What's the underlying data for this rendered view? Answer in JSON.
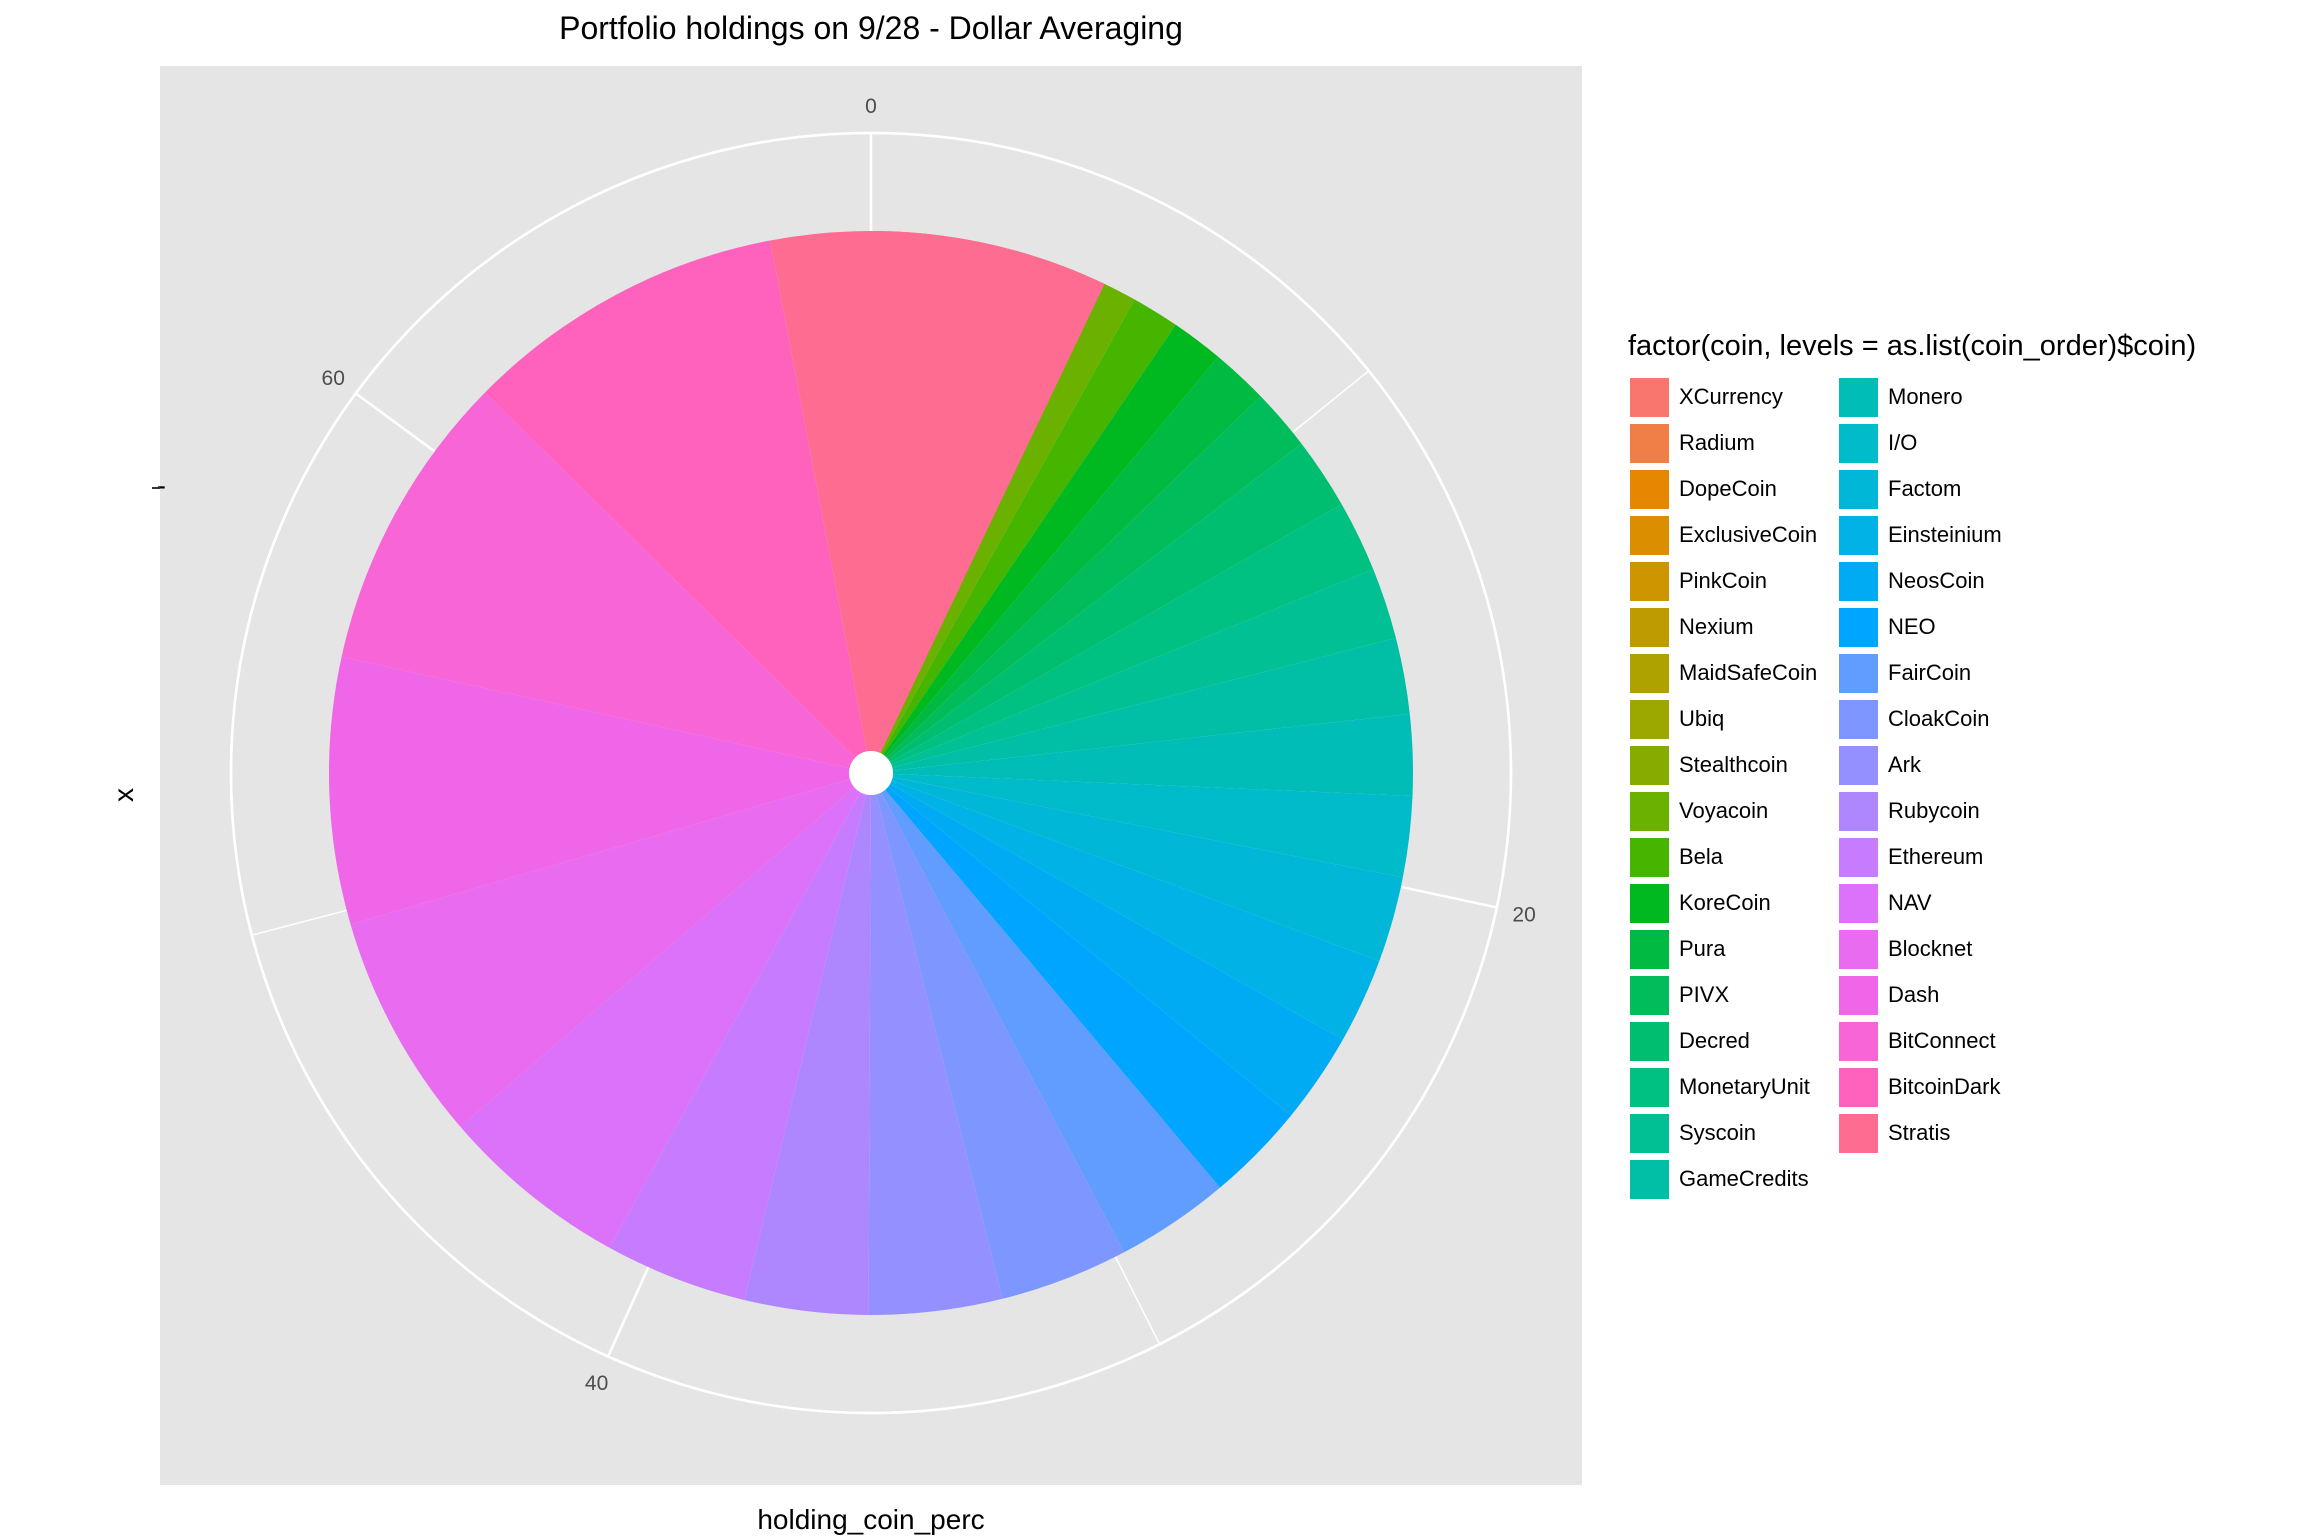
{
  "chart_data": {
    "type": "pie",
    "title": "Portfolio holdings on 9/28 - Dollar Averaging",
    "xlabel": "holding_coin_perc",
    "ylabel": "x",
    "y_tick_label": "-",
    "radial_ticks": [
      "0",
      "20",
      "40",
      "60"
    ],
    "radial_range": [
      0,
      70.5
    ],
    "legend_title": "factor(coin, levels = as.list(coin_order)$coin)",
    "legend_placement": "right",
    "categories": [
      "XCurrency",
      "Radium",
      "DopeCoin",
      "ExclusiveCoin",
      "PinkCoin",
      "Nexium",
      "MaidSafeCoin",
      "Ubiq",
      "Stealthcoin",
      "Voyacoin",
      "Bela",
      "KoreCoin",
      "Pura",
      "PIVX",
      "Decred",
      "MonetaryUnit",
      "Syscoin",
      "GameCredits",
      "Monero",
      "I/O",
      "Factom",
      "Einsteinium",
      "NeosCoin",
      "NEO",
      "FairCoin",
      "CloakCoin",
      "Ark",
      "Rubycoin",
      "Ethereum",
      "NAV",
      "Blocknet",
      "Dash",
      "BitConnect",
      "BitcoinDark",
      "Stratis"
    ],
    "values": [
      0.25,
      0.25,
      0.3,
      0.4,
      0.5,
      0.6,
      0.7,
      0.8,
      0.9,
      1.0,
      1.0,
      1.1,
      1.2,
      1.3,
      1.5,
      1.5,
      1.5,
      1.6,
      1.7,
      1.7,
      1.8,
      1.8,
      1.9,
      2.1,
      2.4,
      2.7,
      2.8,
      2.6,
      3.0,
      4.0,
      4.8,
      5.6,
      6.3,
      6.8,
      7.1
    ],
    "colors": [
      "#F8766D",
      "#EF7F47",
      "#E58700",
      "#DB8E00",
      "#CD9600",
      "#BE9C00",
      "#AEA200",
      "#9CA700",
      "#86AC00",
      "#6BB100",
      "#46B500",
      "#00B81F",
      "#00BA42",
      "#00BC5A",
      "#00BE6F",
      "#00C082",
      "#00C094",
      "#00BFA6",
      "#00BDB8",
      "#00BBC9",
      "#00B7D8",
      "#00B2E6",
      "#00ABF3",
      "#00A5FF",
      "#619CFF",
      "#7E96FF",
      "#9590FF",
      "#AE87FF",
      "#C77CFF",
      "#DC71FA",
      "#E86BF0",
      "#F066E8",
      "#F765D6",
      "#FF62BC",
      "#FF6C91"
    ],
    "grid": true,
    "panel_background": "#E5E5E5",
    "grid_color": "#FFFFFF"
  }
}
